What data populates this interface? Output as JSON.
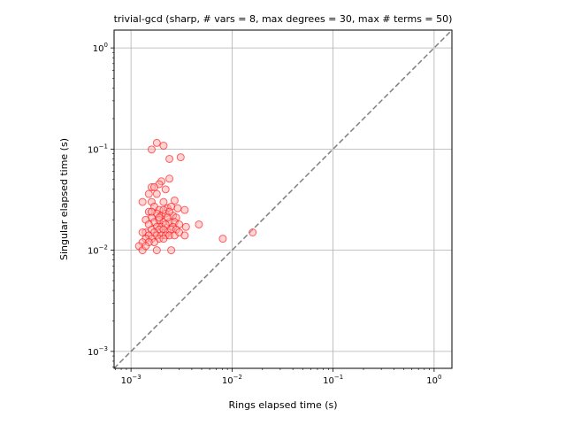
{
  "chart_data": {
    "type": "scatter",
    "title": "trivial-gcd (sharp, # vars = 8, max degrees = 30, max # terms = 50)",
    "xlabel": "Rings elapsed time (s)",
    "ylabel": "Singular elapsed time (s)",
    "xscale": "log",
    "yscale": "log",
    "xlim": [
      0.00068,
      1.5
    ],
    "ylim": [
      0.00068,
      1.5
    ],
    "xticks": [
      {
        "value": 0.001,
        "base": "10",
        "exp": "−3"
      },
      {
        "value": 0.01,
        "base": "10",
        "exp": "−2"
      },
      {
        "value": 0.1,
        "base": "10",
        "exp": "−1"
      },
      {
        "value": 1,
        "base": "10",
        "exp": "0"
      }
    ],
    "yticks": [
      {
        "value": 0.001,
        "base": "10",
        "exp": "−3"
      },
      {
        "value": 0.01,
        "base": "10",
        "exp": "−2"
      },
      {
        "value": 0.1,
        "base": "10",
        "exp": "−1"
      },
      {
        "value": 1,
        "base": "10",
        "exp": "0"
      }
    ],
    "grid": true,
    "diagonal_line": {
      "style": "dashed",
      "color": "#808080",
      "y_equals_x": true
    },
    "marker": {
      "shape": "circle",
      "edge_color": "#ff0000",
      "face_color": "#ffaaaa",
      "alpha": 0.5
    },
    "points": [
      [
        0.0016,
        0.099
      ],
      [
        0.0018,
        0.115
      ],
      [
        0.0021,
        0.108
      ],
      [
        0.0024,
        0.08
      ],
      [
        0.0031,
        0.083
      ],
      [
        0.0024,
        0.051
      ],
      [
        0.002,
        0.048
      ],
      [
        0.0019,
        0.045
      ],
      [
        0.0016,
        0.042
      ],
      [
        0.0017,
        0.042
      ],
      [
        0.0015,
        0.036
      ],
      [
        0.0018,
        0.036
      ],
      [
        0.0022,
        0.04
      ],
      [
        0.0013,
        0.03
      ],
      [
        0.0016,
        0.03
      ],
      [
        0.0021,
        0.03
      ],
      [
        0.0027,
        0.031
      ],
      [
        0.0017,
        0.027
      ],
      [
        0.0019,
        0.025
      ],
      [
        0.0023,
        0.026
      ],
      [
        0.0025,
        0.027
      ],
      [
        0.0029,
        0.026
      ],
      [
        0.0034,
        0.025
      ],
      [
        0.0015,
        0.024
      ],
      [
        0.0018,
        0.023
      ],
      [
        0.002,
        0.022
      ],
      [
        0.0022,
        0.023
      ],
      [
        0.0026,
        0.022
      ],
      [
        0.0028,
        0.021
      ],
      [
        0.0016,
        0.021
      ],
      [
        0.0014,
        0.02
      ],
      [
        0.0017,
        0.019
      ],
      [
        0.0019,
        0.02
      ],
      [
        0.0021,
        0.019
      ],
      [
        0.0024,
        0.019
      ],
      [
        0.0027,
        0.019
      ],
      [
        0.0015,
        0.018
      ],
      [
        0.0018,
        0.017
      ],
      [
        0.002,
        0.017
      ],
      [
        0.0022,
        0.018
      ],
      [
        0.0026,
        0.017
      ],
      [
        0.003,
        0.018
      ],
      [
        0.0035,
        0.017
      ],
      [
        0.0047,
        0.018
      ],
      [
        0.0016,
        0.016
      ],
      [
        0.0019,
        0.016
      ],
      [
        0.0021,
        0.016
      ],
      [
        0.0023,
        0.015
      ],
      [
        0.0025,
        0.016
      ],
      [
        0.0028,
        0.016
      ],
      [
        0.0014,
        0.015
      ],
      [
        0.0017,
        0.015
      ],
      [
        0.0013,
        0.015
      ],
      [
        0.0015,
        0.014
      ],
      [
        0.0018,
        0.014
      ],
      [
        0.002,
        0.014
      ],
      [
        0.0022,
        0.014
      ],
      [
        0.0024,
        0.014
      ],
      [
        0.0027,
        0.014
      ],
      [
        0.003,
        0.015
      ],
      [
        0.0034,
        0.014
      ],
      [
        0.0016,
        0.013
      ],
      [
        0.0019,
        0.013
      ],
      [
        0.0021,
        0.013
      ],
      [
        0.0014,
        0.013
      ],
      [
        0.0017,
        0.012
      ],
      [
        0.0015,
        0.012
      ],
      [
        0.0013,
        0.012
      ],
      [
        0.0012,
        0.011
      ],
      [
        0.0013,
        0.01
      ],
      [
        0.0018,
        0.01
      ],
      [
        0.0025,
        0.01
      ],
      [
        0.0081,
        0.013
      ],
      [
        0.016,
        0.015
      ],
      [
        0.0014,
        0.011
      ],
      [
        0.0016,
        0.024
      ],
      [
        0.0021,
        0.025
      ],
      [
        0.0024,
        0.024
      ],
      [
        0.0019,
        0.021
      ],
      [
        0.0023,
        0.021
      ]
    ]
  }
}
